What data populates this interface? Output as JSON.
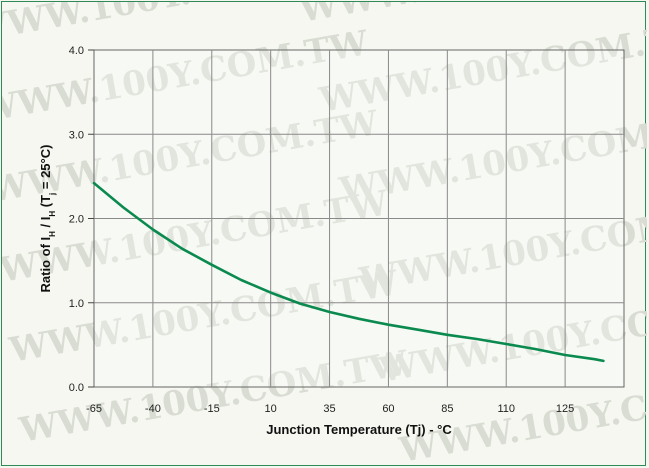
{
  "chart_data": {
    "type": "line",
    "title": "",
    "xlabel": "Junction Temperature (Tj) - °C",
    "ylabel": "Ratio of I_H / I_H (T_j = 25°C)",
    "ylabel_parts": {
      "prefix": "Ratio of  I",
      "sub1": "H",
      "mid": " / I",
      "sub2": "H",
      "paren_open": " (T",
      "sub3": "j",
      "suffix": " = 25°C)"
    },
    "x_ticks": [
      "-65",
      "-40",
      "-15",
      "10",
      "35",
      "60",
      "85",
      "110",
      "125"
    ],
    "y_ticks": [
      "0.0",
      "1.0",
      "2.0",
      "3.0",
      "4.0"
    ],
    "ylim": [
      0,
      4
    ],
    "grid": true,
    "line_color": "#0a8a4f",
    "series": [
      {
        "x_index": [
          0,
          0.5,
          1,
          1.5,
          2,
          2.5,
          3,
          3.5,
          4,
          4.5,
          5,
          5.5,
          6,
          6.5,
          7,
          7.5,
          8,
          8.5,
          8.65
        ],
        "values": [
          2.42,
          2.13,
          1.87,
          1.64,
          1.45,
          1.27,
          1.12,
          0.99,
          0.89,
          0.81,
          0.74,
          0.68,
          0.62,
          0.57,
          0.51,
          0.45,
          0.38,
          0.33,
          0.31
        ]
      }
    ],
    "watermark": "WWW.100Y.COM.TW"
  }
}
